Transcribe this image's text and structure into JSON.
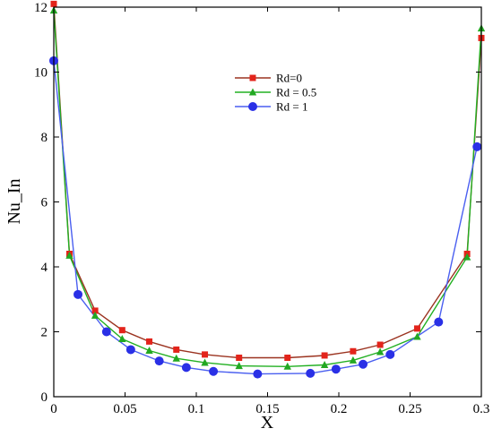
{
  "chart_data": {
    "type": "line",
    "xlabel": "X",
    "ylabel": "Nu_In",
    "xlim": [
      0,
      0.3
    ],
    "ylim": [
      0,
      12
    ],
    "x_ticks": [
      "0",
      "0.05",
      "0.1",
      "0.15",
      "0.2",
      "0.25",
      "0.3"
    ],
    "y_ticks": [
      "0",
      "2",
      "4",
      "6",
      "8",
      "10",
      "12"
    ],
    "legend_position": "upper-center",
    "grid": false,
    "series": [
      {
        "name": "Rd=0",
        "color": "#e3241b",
        "line_color": "#9b3320",
        "marker": "square",
        "points": [
          [
            0,
            12.1
          ],
          [
            0.011,
            4.4
          ],
          [
            0.029,
            2.65
          ],
          [
            0.048,
            2.05
          ],
          [
            0.067,
            1.7
          ],
          [
            0.086,
            1.45
          ],
          [
            0.106,
            1.3
          ],
          [
            0.13,
            1.2
          ],
          [
            0.164,
            1.2
          ],
          [
            0.19,
            1.27
          ],
          [
            0.21,
            1.4
          ],
          [
            0.229,
            1.6
          ],
          [
            0.255,
            2.1
          ],
          [
            0.29,
            4.4
          ],
          [
            0.3,
            11.05
          ]
        ]
      },
      {
        "name": "Rd = 0.5",
        "color": "#22a822",
        "line_color": "#22b022",
        "marker": "triangle",
        "points": [
          [
            0,
            11.9
          ],
          [
            0.011,
            4.35
          ],
          [
            0.029,
            2.5
          ],
          [
            0.048,
            1.78
          ],
          [
            0.067,
            1.42
          ],
          [
            0.086,
            1.18
          ],
          [
            0.106,
            1.05
          ],
          [
            0.13,
            0.95
          ],
          [
            0.164,
            0.93
          ],
          [
            0.19,
            0.98
          ],
          [
            0.21,
            1.12
          ],
          [
            0.229,
            1.38
          ],
          [
            0.255,
            1.85
          ],
          [
            0.29,
            4.3
          ],
          [
            0.3,
            11.35
          ]
        ]
      },
      {
        "name": "Rd = 1",
        "color": "#2a30e6",
        "line_color": "#4a5ff0",
        "marker": "circle",
        "points": [
          [
            0,
            10.35
          ],
          [
            0.017,
            3.15
          ],
          [
            0.037,
            2.0
          ],
          [
            0.054,
            1.45
          ],
          [
            0.074,
            1.1
          ],
          [
            0.093,
            0.9
          ],
          [
            0.112,
            0.78
          ],
          [
            0.143,
            0.7
          ],
          [
            0.18,
            0.72
          ],
          [
            0.198,
            0.85
          ],
          [
            0.217,
            1.0
          ],
          [
            0.236,
            1.3
          ],
          [
            0.27,
            2.3
          ],
          [
            0.297,
            7.7
          ]
        ]
      }
    ]
  }
}
